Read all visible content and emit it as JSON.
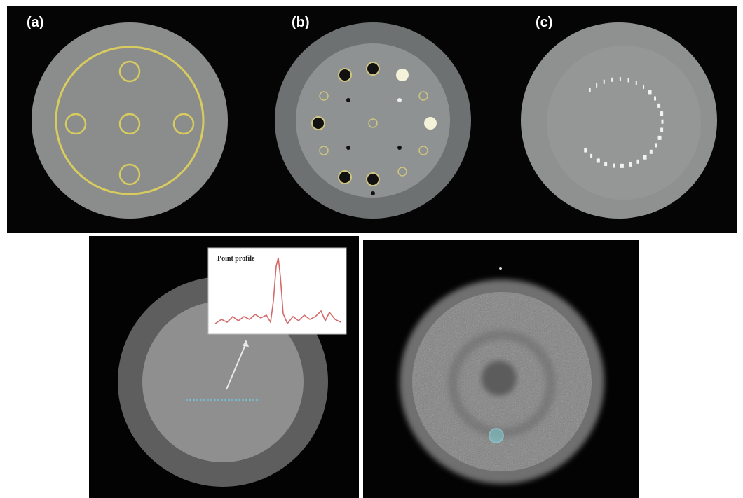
{
  "panels": [
    {
      "label": "(a)"
    },
    {
      "label": "(b)"
    },
    {
      "label": "(c)"
    }
  ],
  "inset": {
    "title": "Point profile"
  }
}
